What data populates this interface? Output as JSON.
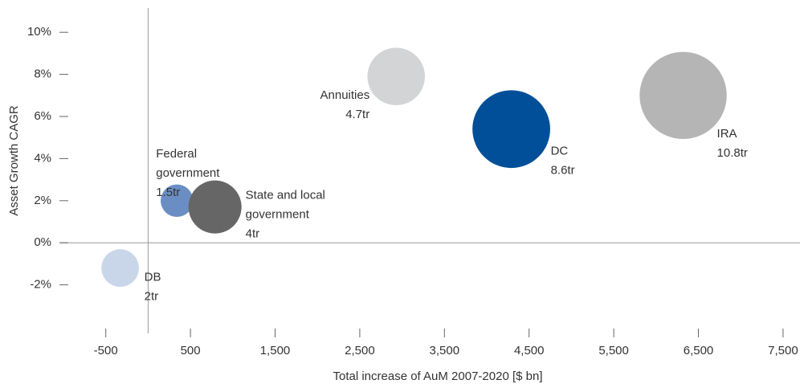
{
  "chart_data": {
    "type": "bubble",
    "x_label": "Total increase of AuM 2007-2020  [$ bn]",
    "y_label": "Asset Growth CAGR",
    "labels": [
      [
        "DB"
      ],
      [
        "Federal",
        "government"
      ],
      [
        "State and local",
        "government"
      ],
      [
        "Annuities"
      ],
      [
        "DC"
      ],
      [
        "IRA"
      ]
    ],
    "x": [
      -330,
      340,
      790,
      2930,
      4290,
      6320
    ],
    "values": [
      -1.2,
      2.0,
      1.7,
      7.9,
      5.4,
      7.0
    ],
    "sizes": [
      2,
      1.5,
      4,
      4.7,
      8.6,
      10.8
    ],
    "size_labels": [
      "2tr",
      "1.5tr",
      "4tr",
      "4.7tr",
      "8.6tr",
      "10.8tr"
    ],
    "colors": [
      "#c9d5e8",
      "#6a8ec4",
      "#666666",
      "#d3d4d6",
      "#004f98",
      "#b5b5b5"
    ],
    "xlim": [
      -1000,
      7700
    ],
    "xticks": [
      -500,
      500,
      {
        "value": 1500,
        "label": "1,500"
      },
      {
        "value": 2500,
        "label": "2,500"
      },
      {
        "value": 3500,
        "label": "3,500"
      },
      {
        "value": 4500,
        "label": "4,500"
      },
      {
        "value": 5500,
        "label": "5,500"
      },
      {
        "value": 6500,
        "label": "6,500"
      },
      {
        "value": 7500,
        "label": "7,500"
      }
    ],
    "ylim": [
      -4,
      11
    ],
    "yticks": [
      {
        "value": -2,
        "label": "-2%"
      },
      {
        "value": 0,
        "label": "0%"
      },
      {
        "value": 2,
        "label": "2%"
      },
      {
        "value": 4,
        "label": "4%"
      },
      {
        "value": 6,
        "label": "6%"
      },
      {
        "value": 8,
        "label": "8%"
      },
      {
        "value": 10,
        "label": "10%"
      }
    ]
  }
}
